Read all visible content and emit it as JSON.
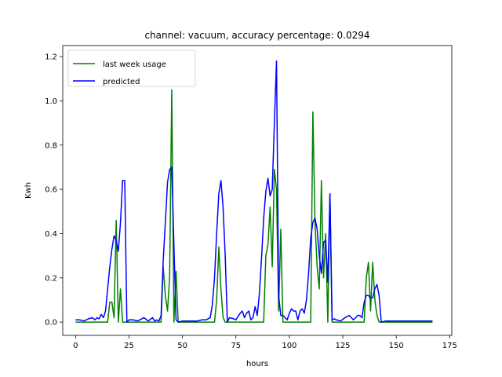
{
  "chart_data": {
    "type": "line",
    "title": "channel: vacuum, accuracy percentage: 0.0294",
    "xlabel": "hours",
    "ylabel": "Kwh",
    "xlim": [
      -6,
      176
    ],
    "ylim": [
      -0.06,
      1.25
    ],
    "xticks": [
      0,
      25,
      50,
      75,
      100,
      125,
      150,
      175
    ],
    "yticks": [
      0.0,
      0.2,
      0.4,
      0.6,
      0.8,
      1.0,
      1.2
    ],
    "ytick_labels": [
      "0.0",
      "0.2",
      "0.4",
      "0.6",
      "0.8",
      "1.0",
      "1.2"
    ],
    "legend_position": "top-left",
    "grid": false,
    "series": [
      {
        "name": "last week usage",
        "color": "#008000",
        "points": [
          [
            0,
            0
          ],
          [
            15,
            0
          ],
          [
            16,
            0.09
          ],
          [
            17,
            0.09
          ],
          [
            18,
            0.02
          ],
          [
            19,
            0.46
          ],
          [
            20,
            0.0
          ],
          [
            21,
            0.15
          ],
          [
            22,
            0
          ],
          [
            40,
            0
          ],
          [
            41,
            0.25
          ],
          [
            42,
            0.12
          ],
          [
            43,
            0.05
          ],
          [
            44,
            0.2
          ],
          [
            45,
            1.05
          ],
          [
            46,
            0.0
          ],
          [
            47,
            0.23
          ],
          [
            48,
            0
          ],
          [
            65,
            0
          ],
          [
            66,
            0.1
          ],
          [
            67,
            0.34
          ],
          [
            68,
            0.15
          ],
          [
            69,
            0.02
          ],
          [
            70,
            0.0
          ],
          [
            88,
            0
          ],
          [
            89,
            0.3
          ],
          [
            90,
            0.35
          ],
          [
            91,
            0.52
          ],
          [
            92,
            0.25
          ],
          [
            93,
            0.69
          ],
          [
            94,
            0.6
          ],
          [
            95,
            0.05
          ],
          [
            96,
            0.42
          ],
          [
            97,
            0.0
          ],
          [
            110,
            0
          ],
          [
            111,
            0.95
          ],
          [
            112,
            0.45
          ],
          [
            113,
            0.25
          ],
          [
            114,
            0.15
          ],
          [
            115,
            0.64
          ],
          [
            116,
            0.2
          ],
          [
            117,
            0.4
          ],
          [
            118,
            0.0
          ],
          [
            119,
            0.58
          ],
          [
            120,
            0.0
          ],
          [
            135,
            0
          ],
          [
            136,
            0.2
          ],
          [
            137,
            0.27
          ],
          [
            138,
            0.05
          ],
          [
            139,
            0.27
          ],
          [
            140,
            0.1
          ],
          [
            141,
            0.03
          ],
          [
            142,
            0.0
          ],
          [
            167,
            0
          ]
        ]
      },
      {
        "name": "predicted",
        "color": "#0000ff",
        "points": [
          [
            0,
            0.01
          ],
          [
            2,
            0.01
          ],
          [
            4,
            0.005
          ],
          [
            6,
            0.015
          ],
          [
            8,
            0.02
          ],
          [
            9,
            0.01
          ],
          [
            10,
            0.02
          ],
          [
            11,
            0.015
          ],
          [
            12,
            0.035
          ],
          [
            13,
            0.02
          ],
          [
            14,
            0.05
          ],
          [
            15,
            0.15
          ],
          [
            16,
            0.25
          ],
          [
            17,
            0.33
          ],
          [
            18,
            0.39
          ],
          [
            19,
            0.37
          ],
          [
            20,
            0.32
          ],
          [
            21,
            0.45
          ],
          [
            22,
            0.64
          ],
          [
            23,
            0.64
          ],
          [
            24,
            0.0
          ],
          [
            25,
            0.01
          ],
          [
            27,
            0.01
          ],
          [
            29,
            0.005
          ],
          [
            30,
            0.01
          ],
          [
            32,
            0.02
          ],
          [
            34,
            0.005
          ],
          [
            36,
            0.02
          ],
          [
            37,
            0.005
          ],
          [
            38,
            0.01
          ],
          [
            39,
            0.005
          ],
          [
            40,
            0.03
          ],
          [
            41,
            0.28
          ],
          [
            42,
            0.45
          ],
          [
            43,
            0.63
          ],
          [
            44,
            0.69
          ],
          [
            45,
            0.7
          ],
          [
            46,
            0.35
          ],
          [
            47,
            0.01
          ],
          [
            48,
            0.0
          ],
          [
            50,
            0.005
          ],
          [
            55,
            0.005
          ],
          [
            57,
            0.005
          ],
          [
            59,
            0.01
          ],
          [
            61,
            0.01
          ],
          [
            63,
            0.02
          ],
          [
            64,
            0.08
          ],
          [
            65,
            0.2
          ],
          [
            66,
            0.4
          ],
          [
            67,
            0.58
          ],
          [
            68,
            0.64
          ],
          [
            69,
            0.52
          ],
          [
            70,
            0.3
          ],
          [
            71,
            0.0
          ],
          [
            72,
            0.02
          ],
          [
            74,
            0.015
          ],
          [
            75,
            0.01
          ],
          [
            77,
            0.04
          ],
          [
            78,
            0.05
          ],
          [
            79,
            0.02
          ],
          [
            80,
            0.04
          ],
          [
            81,
            0.05
          ],
          [
            82,
            0.01
          ],
          [
            83,
            0.02
          ],
          [
            84,
            0.07
          ],
          [
            85,
            0.03
          ],
          [
            86,
            0.13
          ],
          [
            87,
            0.29
          ],
          [
            88,
            0.47
          ],
          [
            89,
            0.59
          ],
          [
            90,
            0.65
          ],
          [
            91,
            0.57
          ],
          [
            92,
            0.6
          ],
          [
            93,
            0.9
          ],
          [
            94,
            1.18
          ],
          [
            95,
            0.12
          ],
          [
            96,
            0.03
          ],
          [
            97,
            0.03
          ],
          [
            98,
            0.02
          ],
          [
            99,
            0.01
          ],
          [
            100,
            0.04
          ],
          [
            101,
            0.06
          ],
          [
            102,
            0.05
          ],
          [
            103,
            0.05
          ],
          [
            104,
            0.01
          ],
          [
            105,
            0.05
          ],
          [
            106,
            0.06
          ],
          [
            107,
            0.04
          ],
          [
            108,
            0.1
          ],
          [
            109,
            0.22
          ],
          [
            110,
            0.38
          ],
          [
            111,
            0.45
          ],
          [
            112,
            0.47
          ],
          [
            113,
            0.42
          ],
          [
            114,
            0.3
          ],
          [
            115,
            0.22
          ],
          [
            116,
            0.36
          ],
          [
            117,
            0.37
          ],
          [
            118,
            0.18
          ],
          [
            119,
            0.58
          ],
          [
            120,
            0.01
          ],
          [
            121,
            0.015
          ],
          [
            122,
            0.01
          ],
          [
            124,
            0.005
          ],
          [
            126,
            0.02
          ],
          [
            128,
            0.03
          ],
          [
            130,
            0.01
          ],
          [
            131,
            0.02
          ],
          [
            132,
            0.03
          ],
          [
            133,
            0.03
          ],
          [
            134,
            0.02
          ],
          [
            135,
            0.09
          ],
          [
            136,
            0.12
          ],
          [
            137,
            0.12
          ],
          [
            138,
            0.11
          ],
          [
            139,
            0.11
          ],
          [
            140,
            0.15
          ],
          [
            141,
            0.17
          ],
          [
            142,
            0.12
          ],
          [
            143,
            0.0
          ],
          [
            145,
            0.005
          ],
          [
            150,
            0.005
          ],
          [
            155,
            0.005
          ],
          [
            160,
            0.005
          ],
          [
            167,
            0.005
          ]
        ]
      }
    ]
  }
}
